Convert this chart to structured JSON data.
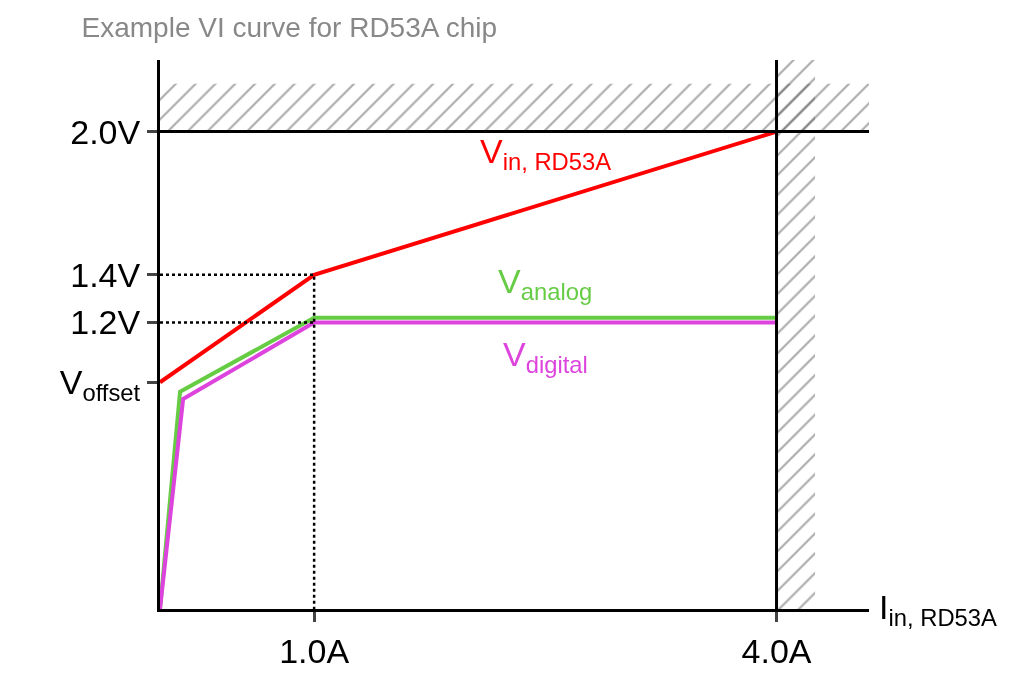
{
  "chart_data": {
    "type": "line",
    "title": "Example VI curve for RD53A chip",
    "xlabel": "I$_{in, RD53A}$",
    "series": [
      {
        "name": "V$_{in, RD53A}$",
        "color": "#ff0000",
        "x": [
          0,
          1.0,
          4.0
        ],
        "values": [
          0.95,
          1.4,
          2.0
        ]
      },
      {
        "name": "V$_{analog}$",
        "color": "#66cc44",
        "x": [
          0,
          0.13,
          1.0,
          4.0
        ],
        "values": [
          0,
          0.91,
          1.22,
          1.22
        ]
      },
      {
        "name": "V$_{digital}$",
        "color": "#dd44dd",
        "x": [
          0,
          0.15,
          1.0,
          4.0
        ],
        "values": [
          0,
          0.88,
          1.2,
          1.2
        ]
      },
      {
        "color": "#000000",
        "x": [
          0,
          1.0,
          1.0
        ],
        "values": [
          1.4,
          1.4,
          0
        ],
        "line_style": "dotted"
      },
      {
        "color": "#000000",
        "x": [
          0,
          1.0
        ],
        "values": [
          1.2,
          1.2
        ],
        "line_style": "dotted"
      }
    ],
    "xlim": [
      0,
      4.6
    ],
    "ylim": [
      0,
      2.3
    ],
    "xticks": [
      {
        "value": 1.0,
        "label": "1.0A"
      },
      {
        "value": 4.0,
        "label": "4.0A"
      }
    ],
    "yticks": [
      {
        "value": 0.95,
        "label": "V$_{offset}$"
      },
      {
        "value": 1.2,
        "label": "1.2V"
      },
      {
        "value": 1.4,
        "label": "1.4V"
      },
      {
        "value": 2.0,
        "label": "2.0V"
      }
    ],
    "ref_lines": [
      {
        "axis": "y",
        "value": 2.0,
        "color": "#000000"
      },
      {
        "axis": "x",
        "value": 4.0,
        "color": "#000000"
      }
    ],
    "bands": [
      {
        "axis": "y",
        "from": 2.0,
        "to": 2.2,
        "color": "#555555"
      },
      {
        "axis": "x",
        "from": 4.0,
        "to": 4.25,
        "color": "#555555"
      }
    ],
    "legend": false,
    "line_style": "solid"
  }
}
